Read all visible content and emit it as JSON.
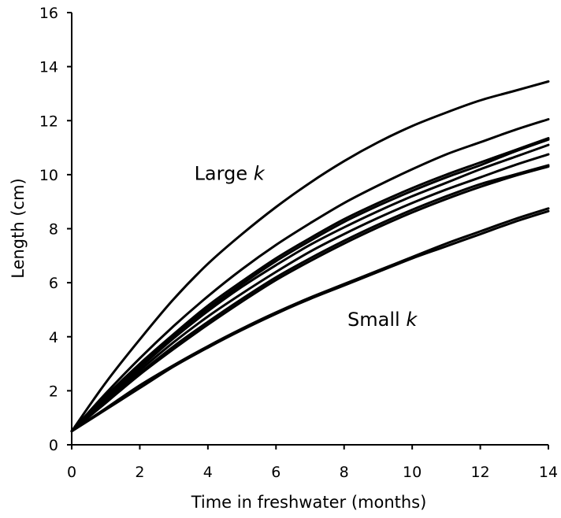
{
  "chart_data": {
    "type": "line",
    "title": "",
    "xlabel": "Time in freshwater (months)",
    "ylabel": "Length (cm)",
    "xlim": [
      0,
      14
    ],
    "ylim": [
      0,
      16
    ],
    "xticks": [
      0,
      2,
      4,
      6,
      8,
      10,
      12,
      14
    ],
    "yticks": [
      0,
      2,
      4,
      6,
      8,
      10,
      12,
      14,
      16
    ],
    "grid": false,
    "legend": "none",
    "x": [
      0,
      1,
      2,
      3,
      4,
      5,
      6,
      7,
      8,
      9,
      10,
      11,
      12,
      13,
      14
    ],
    "series": [
      {
        "values": [
          0.5,
          2.3,
          3.9,
          5.4,
          6.7,
          7.8,
          8.8,
          9.7,
          10.5,
          11.2,
          11.8,
          12.3,
          12.75,
          13.1,
          13.45
        ]
      },
      {
        "values": [
          0.5,
          1.9,
          3.2,
          4.4,
          5.5,
          6.5,
          7.4,
          8.2,
          8.95,
          9.6,
          10.2,
          10.75,
          11.2,
          11.65,
          12.05
        ]
      },
      {
        "values": [
          0.5,
          1.8,
          3.0,
          4.1,
          5.15,
          6.05,
          6.9,
          7.65,
          8.35,
          8.95,
          9.5,
          10.0,
          10.45,
          10.9,
          11.35
        ]
      },
      {
        "values": [
          0.5,
          1.75,
          2.95,
          4.05,
          5.05,
          5.95,
          6.8,
          7.55,
          8.25,
          8.85,
          9.4,
          9.9,
          10.35,
          10.85,
          11.3
        ]
      },
      {
        "values": [
          0.5,
          1.7,
          2.85,
          3.95,
          4.95,
          5.85,
          6.65,
          7.4,
          8.05,
          8.65,
          9.2,
          9.7,
          10.2,
          10.65,
          11.1
        ]
      },
      {
        "values": [
          0.5,
          1.65,
          2.75,
          3.8,
          4.75,
          5.6,
          6.4,
          7.15,
          7.8,
          8.4,
          8.95,
          9.45,
          9.9,
          10.35,
          10.75
        ]
      },
      {
        "values": [
          0.5,
          1.6,
          2.65,
          3.65,
          4.55,
          5.4,
          6.2,
          6.9,
          7.55,
          8.15,
          8.7,
          9.2,
          9.65,
          10.0,
          10.35
        ]
      },
      {
        "values": [
          0.5,
          1.55,
          2.6,
          3.55,
          4.45,
          5.3,
          6.1,
          6.8,
          7.45,
          8.05,
          8.6,
          9.1,
          9.55,
          9.95,
          10.3
        ]
      },
      {
        "values": [
          0.5,
          1.35,
          2.2,
          2.95,
          3.65,
          4.3,
          4.9,
          5.45,
          5.95,
          6.45,
          6.95,
          7.45,
          7.9,
          8.35,
          8.75
        ]
      },
      {
        "values": [
          0.5,
          1.3,
          2.1,
          2.9,
          3.6,
          4.25,
          4.85,
          5.4,
          5.9,
          6.4,
          6.9,
          7.35,
          7.8,
          8.25,
          8.65
        ]
      }
    ],
    "annotations": [
      {
        "label": "Large ",
        "emph": "k",
        "x": 3.6,
        "y": 9.8
      },
      {
        "label": "Small ",
        "emph": "k",
        "x": 8.1,
        "y": 4.4
      }
    ]
  }
}
